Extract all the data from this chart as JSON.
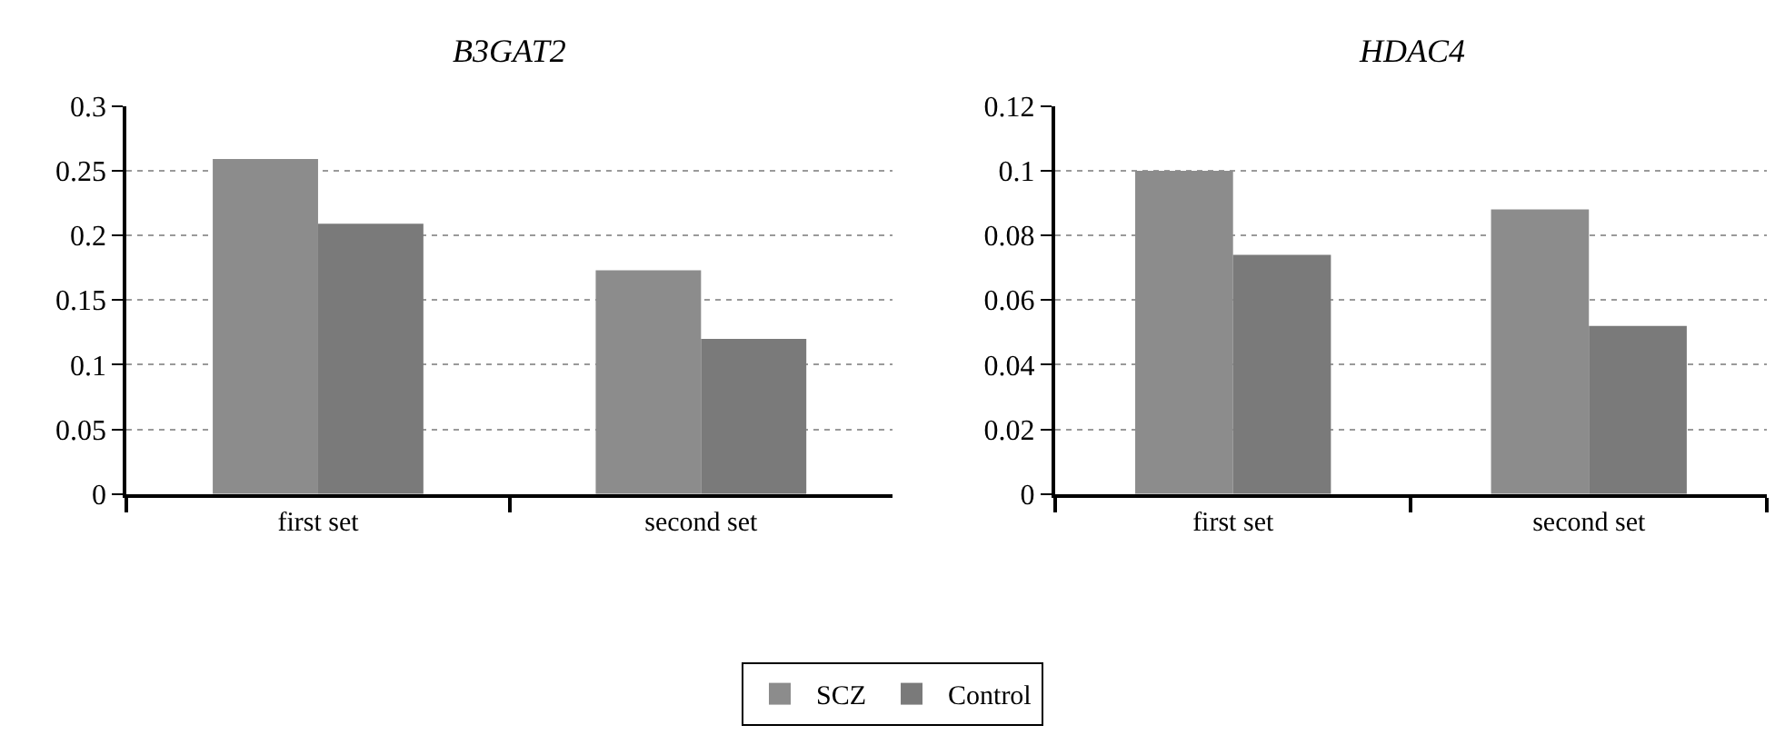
{
  "chart_data": [
    {
      "type": "bar",
      "title": "B3GAT2",
      "categories": [
        "first set",
        "second set"
      ],
      "series": [
        {
          "name": "SCZ",
          "color": "#8c8c8c",
          "values": [
            0.259,
            0.173
          ]
        },
        {
          "name": "Control",
          "color": "#7a7a7a",
          "values": [
            0.209,
            0.12
          ]
        }
      ],
      "ylim": [
        0,
        0.3
      ],
      "yticks": [
        0,
        0.05,
        0.1,
        0.15,
        0.2,
        0.25,
        0.3
      ],
      "grid": "y",
      "legend": "bottom"
    },
    {
      "type": "bar",
      "title": "HDAC4",
      "categories": [
        "first set",
        "second set"
      ],
      "series": [
        {
          "color": "#8c8c8c",
          "values": [
            0.1,
            0.088
          ]
        },
        {
          "color": "#7a7a7a",
          "values": [
            0.074,
            0.052
          ]
        }
      ],
      "ylim": [
        0,
        0.12
      ],
      "yticks": [
        0,
        0.02,
        0.04,
        0.06,
        0.08,
        0.1,
        0.12
      ],
      "grid": "y"
    }
  ]
}
